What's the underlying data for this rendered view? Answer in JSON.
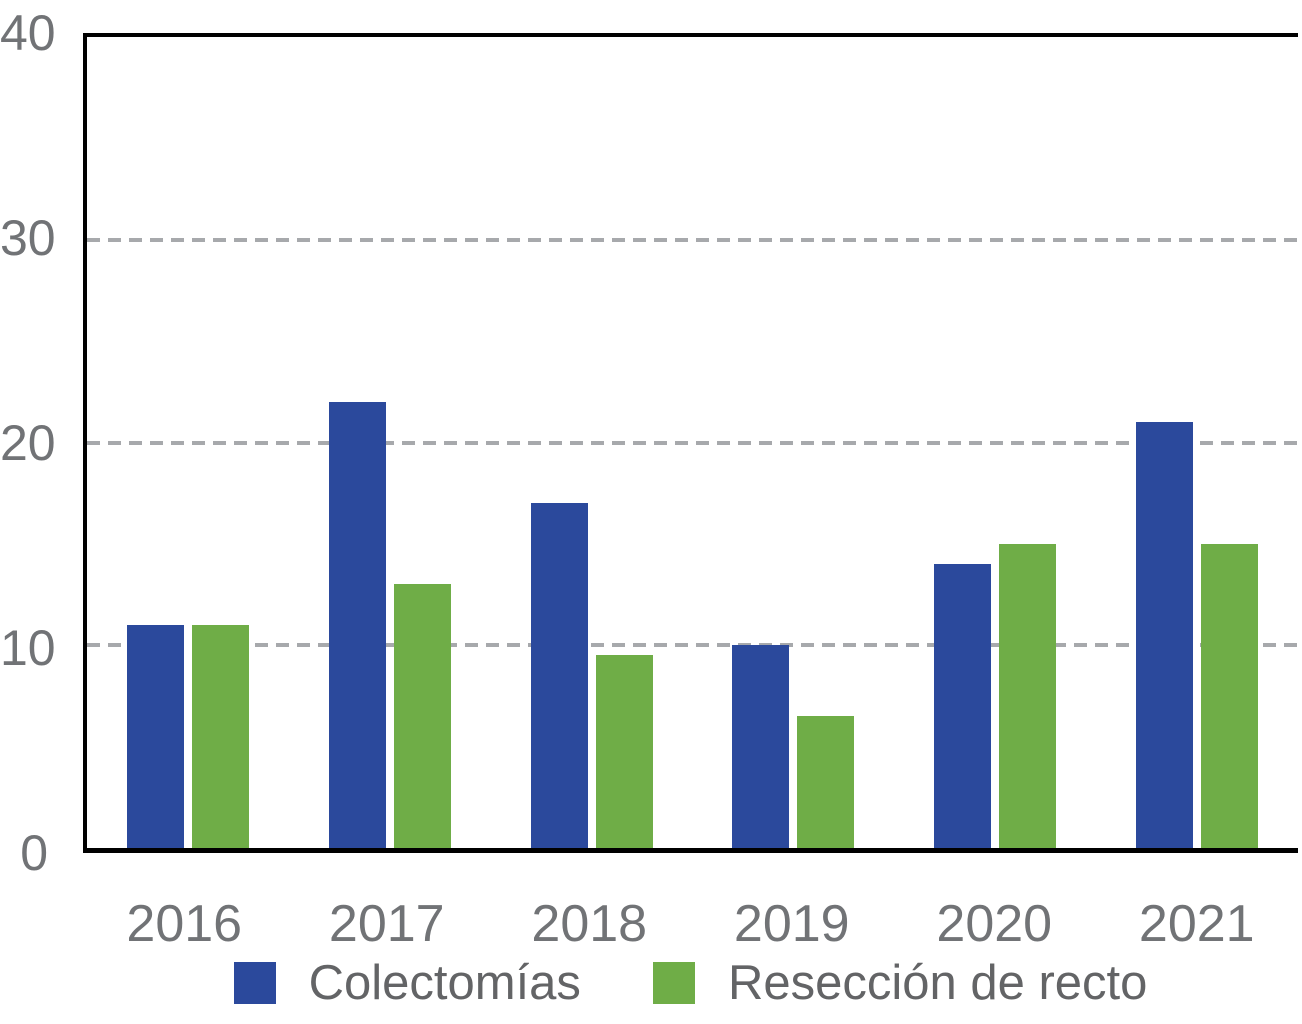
{
  "chart_data": {
    "type": "bar",
    "title": "",
    "xlabel": "",
    "ylabel": "",
    "categories": [
      "2016",
      "2017",
      "2018",
      "2019",
      "2020",
      "2021"
    ],
    "series": [
      {
        "name": "Colectomías",
        "color": "#2B499C",
        "values": [
          11,
          22,
          17,
          10,
          14,
          21
        ]
      },
      {
        "name": "Resección de recto",
        "color": "#6FAD47",
        "values": [
          11,
          13,
          9.5,
          6.5,
          15,
          15
        ]
      }
    ],
    "ylim": [
      0,
      40
    ],
    "yticks": [
      0,
      10,
      20,
      30,
      40
    ],
    "gridlines": [
      10,
      20,
      30
    ],
    "grid_style": "dashed",
    "legend_position": "bottom"
  },
  "colors": {
    "background": "#FFFFFF",
    "axis": "#000000",
    "grid": "#A7A9AC",
    "tick_label": "#717376",
    "legend_text": "#636466"
  }
}
